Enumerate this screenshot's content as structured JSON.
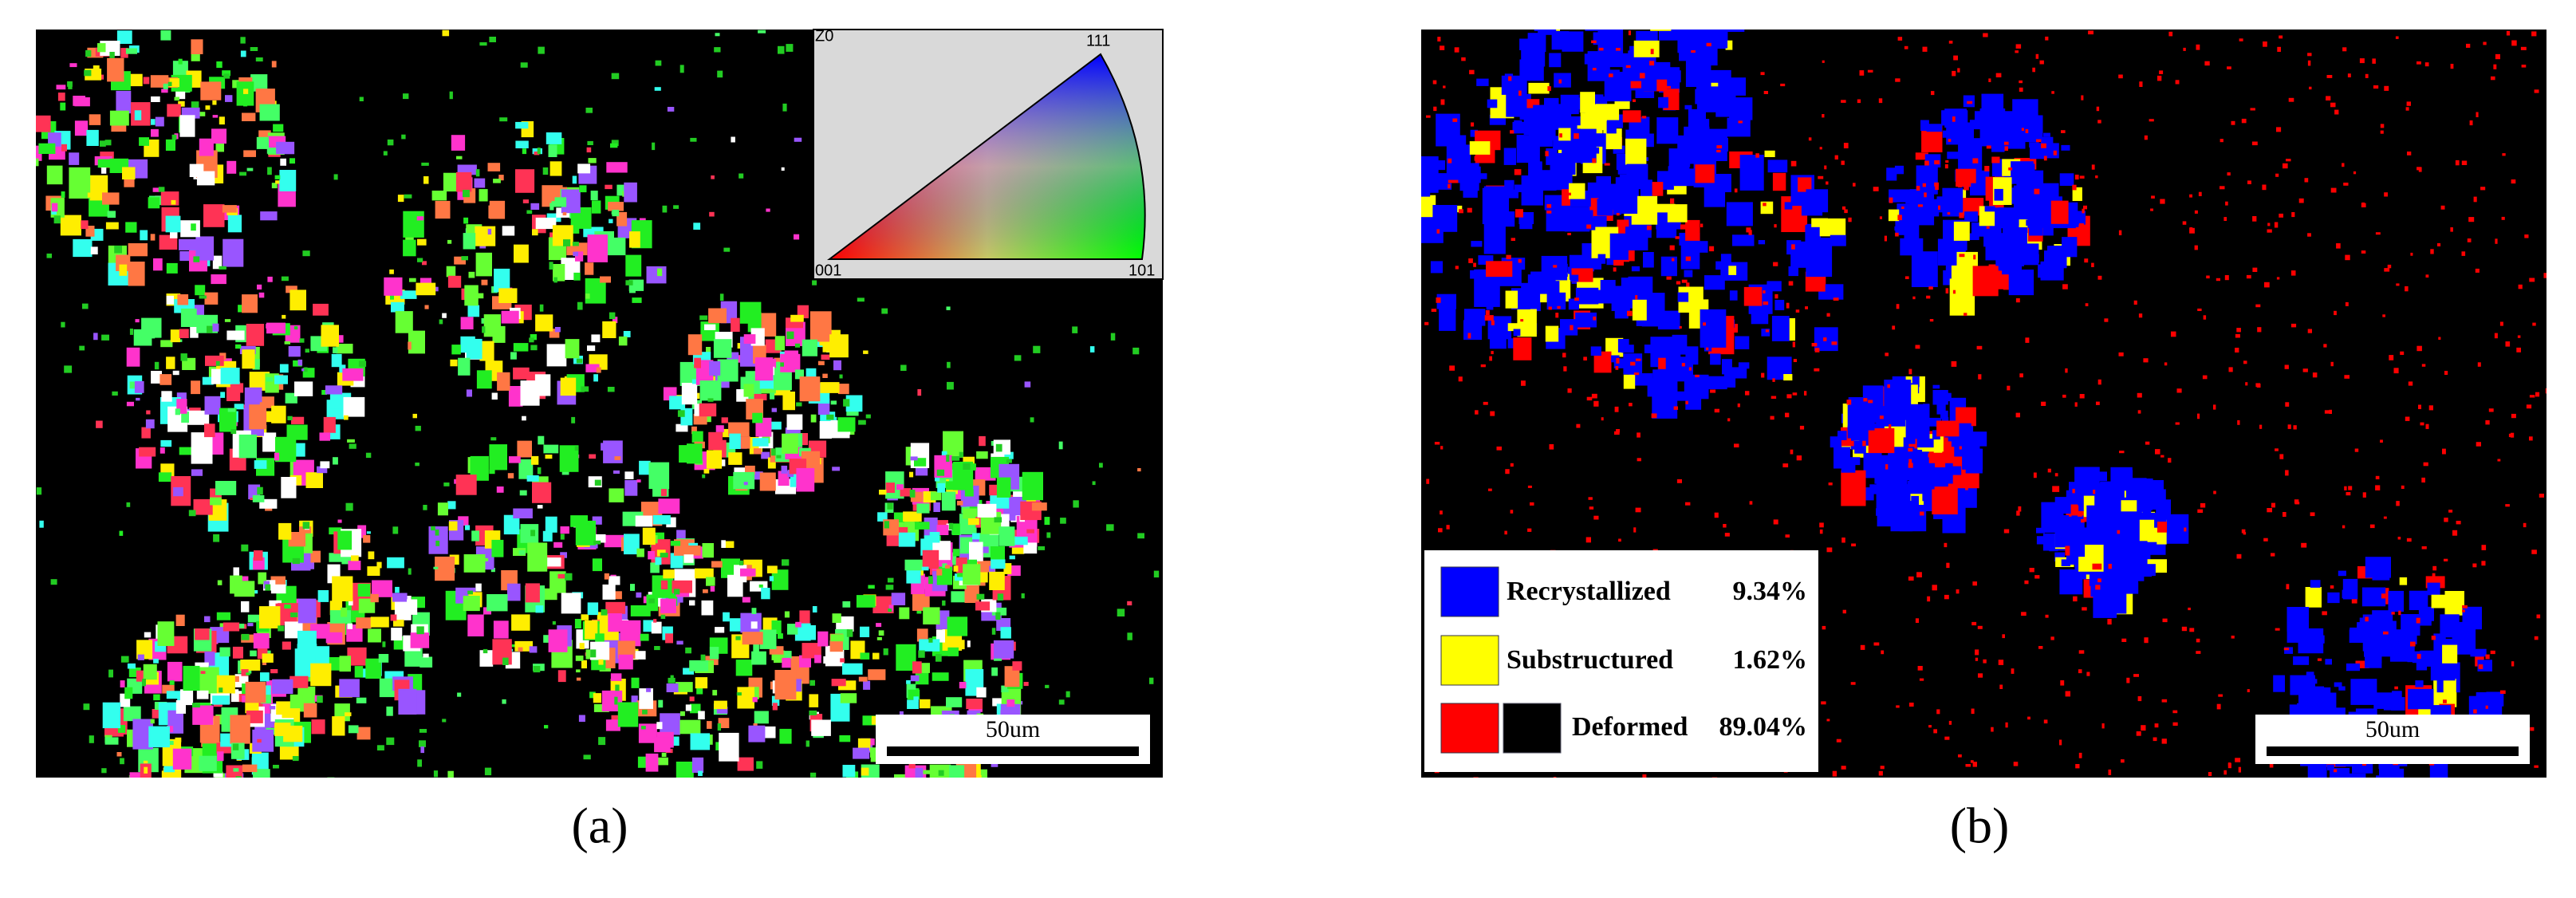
{
  "panels": [
    {
      "label": "(a)",
      "scale_bar": "50um",
      "inset_labels": [
        "Z0",
        "111",
        "001",
        "101"
      ]
    },
    {
      "label": "(b)",
      "scale_bar": "50um",
      "legend": [
        {
          "name": "Recrystallized",
          "fraction": "9.34%"
        },
        {
          "name": "Substructured",
          "fraction": "1.62%"
        },
        {
          "name": "Deformed",
          "fraction": "89.04%"
        }
      ]
    }
  ]
}
